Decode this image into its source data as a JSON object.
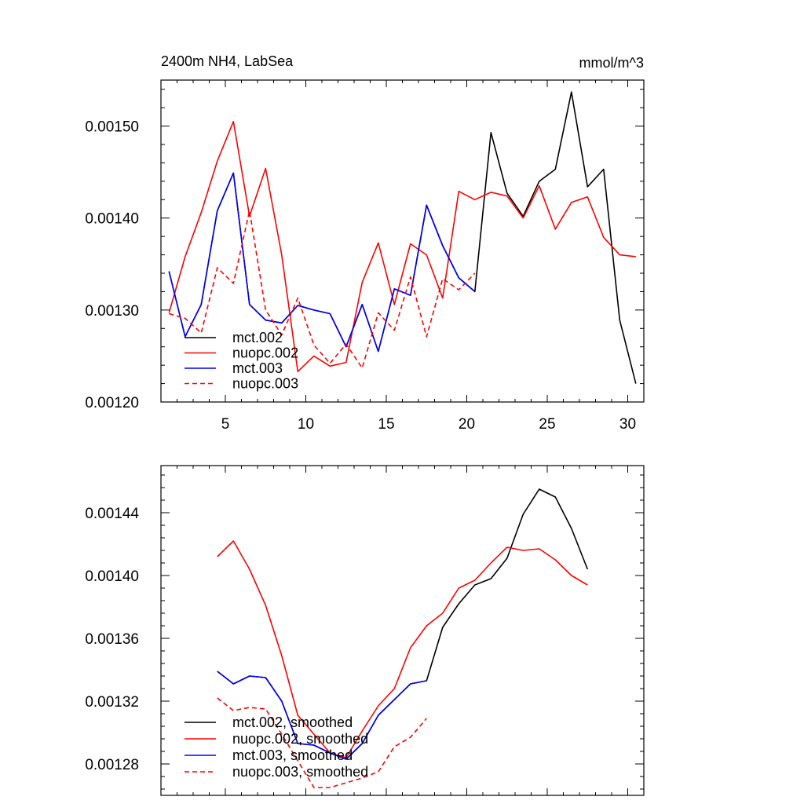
{
  "chart_data": [
    {
      "type": "line",
      "title": "2400m NH4, LabSea",
      "units_label": "mmol/m^3",
      "xlim": [
        1,
        31
      ],
      "ylim": [
        0.0012,
        0.00155
      ],
      "x_ticks": [
        5,
        10,
        15,
        20,
        25,
        30
      ],
      "x_tick_labels": [
        "5",
        "10",
        "15",
        "20",
        "25",
        "30"
      ],
      "y_ticks": [
        0.0012,
        0.0013,
        0.0014,
        0.0015
      ],
      "y_tick_labels": [
        "0.00120",
        "0.00130",
        "0.00140",
        "0.00150"
      ],
      "legend_position": "bottom-left",
      "series": [
        {
          "name": "mct.002",
          "color": "#000000",
          "dash": "solid",
          "x": [
            1.5,
            2.5,
            3.5,
            4.5,
            5.5,
            6.5,
            7.5,
            8.5,
            9.5,
            10.5,
            11.5,
            12.5,
            13.5,
            14.5,
            15.5,
            16.5,
            17.5,
            18.5,
            19.5,
            20.5,
            21.5,
            22.5,
            23.5,
            24.5,
            25.5,
            26.5,
            27.5,
            28.5,
            29.5,
            30.5
          ],
          "values": [
            0.001342,
            0.001271,
            0.001306,
            0.001408,
            0.001449,
            0.001306,
            0.001289,
            0.001286,
            0.001305,
            0.0013,
            0.001296,
            0.00126,
            0.001306,
            0.001255,
            0.001323,
            0.001316,
            0.001414,
            0.00137,
            0.001335,
            0.00132,
            0.001493,
            0.001427,
            0.001402,
            0.00144,
            0.001453,
            0.001537,
            0.001434,
            0.001453,
            0.001289,
            0.00122
          ]
        },
        {
          "name": "nuopc.002",
          "color": "#ff0000",
          "dash": "solid",
          "x": [
            1.5,
            2.5,
            3.5,
            4.5,
            5.5,
            6.5,
            7.5,
            8.5,
            9.5,
            10.5,
            11.5,
            12.5,
            13.5,
            14.5,
            15.5,
            16.5,
            17.5,
            18.5,
            19.5,
            20.5,
            21.5,
            22.5,
            23.5,
            24.5,
            25.5,
            26.5,
            27.5,
            28.5,
            29.5,
            30.5
          ],
          "values": [
            0.001297,
            0.001358,
            0.001406,
            0.001462,
            0.001505,
            0.001402,
            0.001454,
            0.00136,
            0.001233,
            0.00125,
            0.001239,
            0.001243,
            0.00133,
            0.001373,
            0.001306,
            0.001372,
            0.00136,
            0.001313,
            0.001429,
            0.00142,
            0.001428,
            0.001424,
            0.0014,
            0.001435,
            0.001388,
            0.001417,
            0.001423,
            0.001379,
            0.00136,
            0.001358
          ]
        },
        {
          "name": "mct.003",
          "color": "#0000ff",
          "dash": "solid",
          "x": [
            1.5,
            2.5,
            3.5,
            4.5,
            5.5,
            6.5,
            7.5,
            8.5,
            9.5,
            10.5,
            11.5,
            12.5,
            13.5,
            14.5,
            15.5,
            16.5,
            17.5,
            18.5,
            19.5,
            20.5
          ],
          "values": [
            0.001342,
            0.001271,
            0.001306,
            0.001408,
            0.001449,
            0.001306,
            0.001289,
            0.001286,
            0.001305,
            0.0013,
            0.001296,
            0.00126,
            0.001306,
            0.001255,
            0.001323,
            0.001316,
            0.001414,
            0.00137,
            0.001335,
            0.00132
          ]
        },
        {
          "name": "nuopc.003",
          "color": "#ff0000",
          "dash": "dashed",
          "x": [
            1.5,
            2.5,
            3.5,
            4.5,
            5.5,
            6.5,
            7.5,
            8.5,
            9.5,
            10.5,
            11.5,
            12.5,
            13.5,
            14.5,
            15.5,
            16.5,
            17.5,
            18.5,
            19.5,
            20.5
          ],
          "values": [
            0.001296,
            0.001291,
            0.001275,
            0.001346,
            0.001329,
            0.001408,
            0.0013,
            0.001273,
            0.001313,
            0.001262,
            0.001242,
            0.001263,
            0.001237,
            0.001297,
            0.001278,
            0.001336,
            0.001271,
            0.001334,
            0.001322,
            0.00134
          ]
        }
      ]
    },
    {
      "type": "line",
      "title": "",
      "xlim": [
        1,
        31
      ],
      "ylim": [
        0.00126,
        0.00147
      ],
      "x_ticks": [
        5,
        10,
        15,
        20,
        25,
        30
      ],
      "x_tick_labels": [
        "",
        "",
        "",
        "",
        "",
        ""
      ],
      "y_ticks": [
        0.00128,
        0.00132,
        0.00136,
        0.0014,
        0.00144
      ],
      "y_tick_labels": [
        "0.00128",
        "0.00132",
        "0.00136",
        "0.00140",
        "0.00144"
      ],
      "legend_position": "bottom-left",
      "series": [
        {
          "name": "mct.002, smoothed",
          "color": "#000000",
          "dash": "solid",
          "x": [
            4.5,
            5.5,
            6.5,
            7.5,
            8.5,
            9.5,
            10.5,
            11.5,
            12.5,
            13.5,
            14.5,
            15.5,
            16.5,
            17.5,
            18.5,
            19.5,
            20.5,
            21.5,
            22.5,
            23.5,
            24.5,
            25.5,
            26.5,
            27.5
          ],
          "values": [
            0.001339,
            0.001331,
            0.001336,
            0.001335,
            0.00132,
            0.001293,
            0.001292,
            0.001287,
            0.001283,
            0.001293,
            0.001311,
            0.001321,
            0.001331,
            0.001333,
            0.001367,
            0.001382,
            0.001394,
            0.001398,
            0.001411,
            0.001439,
            0.001455,
            0.00145,
            0.00143,
            0.001404
          ]
        },
        {
          "name": "nuopc.002, smoothed",
          "color": "#ff0000",
          "dash": "solid",
          "x": [
            4.5,
            5.5,
            6.5,
            7.5,
            8.5,
            9.5,
            10.5,
            11.5,
            12.5,
            13.5,
            14.5,
            15.5,
            16.5,
            17.5,
            18.5,
            19.5,
            20.5,
            21.5,
            22.5,
            23.5,
            24.5,
            25.5,
            26.5,
            27.5
          ],
          "values": [
            0.001412,
            0.001422,
            0.001404,
            0.001381,
            0.001349,
            0.001311,
            0.001299,
            0.001287,
            0.001284,
            0.001301,
            0.001317,
            0.001328,
            0.001354,
            0.001368,
            0.001376,
            0.001392,
            0.001397,
            0.001408,
            0.001418,
            0.001416,
            0.001417,
            0.00141,
            0.0014,
            0.001394
          ]
        },
        {
          "name": "mct.003, smoothed",
          "color": "#0000ff",
          "dash": "solid",
          "x": [
            4.5,
            5.5,
            6.5,
            7.5,
            8.5,
            9.5,
            10.5,
            11.5,
            12.5,
            13.5,
            14.5,
            15.5,
            16.5,
            17.5
          ],
          "values": [
            0.001339,
            0.001331,
            0.001336,
            0.001335,
            0.00132,
            0.001293,
            0.001292,
            0.001287,
            0.001283,
            0.001293,
            0.001311,
            0.001321,
            0.001331,
            0.001333
          ]
        },
        {
          "name": "nuopc.003, smoothed",
          "color": "#ff0000",
          "dash": "dashed",
          "x": [
            4.5,
            5.5,
            6.5,
            7.5,
            8.5,
            9.5,
            10.5,
            11.5,
            12.5,
            13.5,
            14.5,
            15.5,
            16.5,
            17.5
          ],
          "values": [
            0.001322,
            0.001314,
            0.001316,
            0.001315,
            0.001299,
            0.001282,
            0.001265,
            0.001265,
            0.001268,
            0.001271,
            0.001275,
            0.001291,
            0.001297,
            0.001309
          ]
        }
      ]
    }
  ]
}
